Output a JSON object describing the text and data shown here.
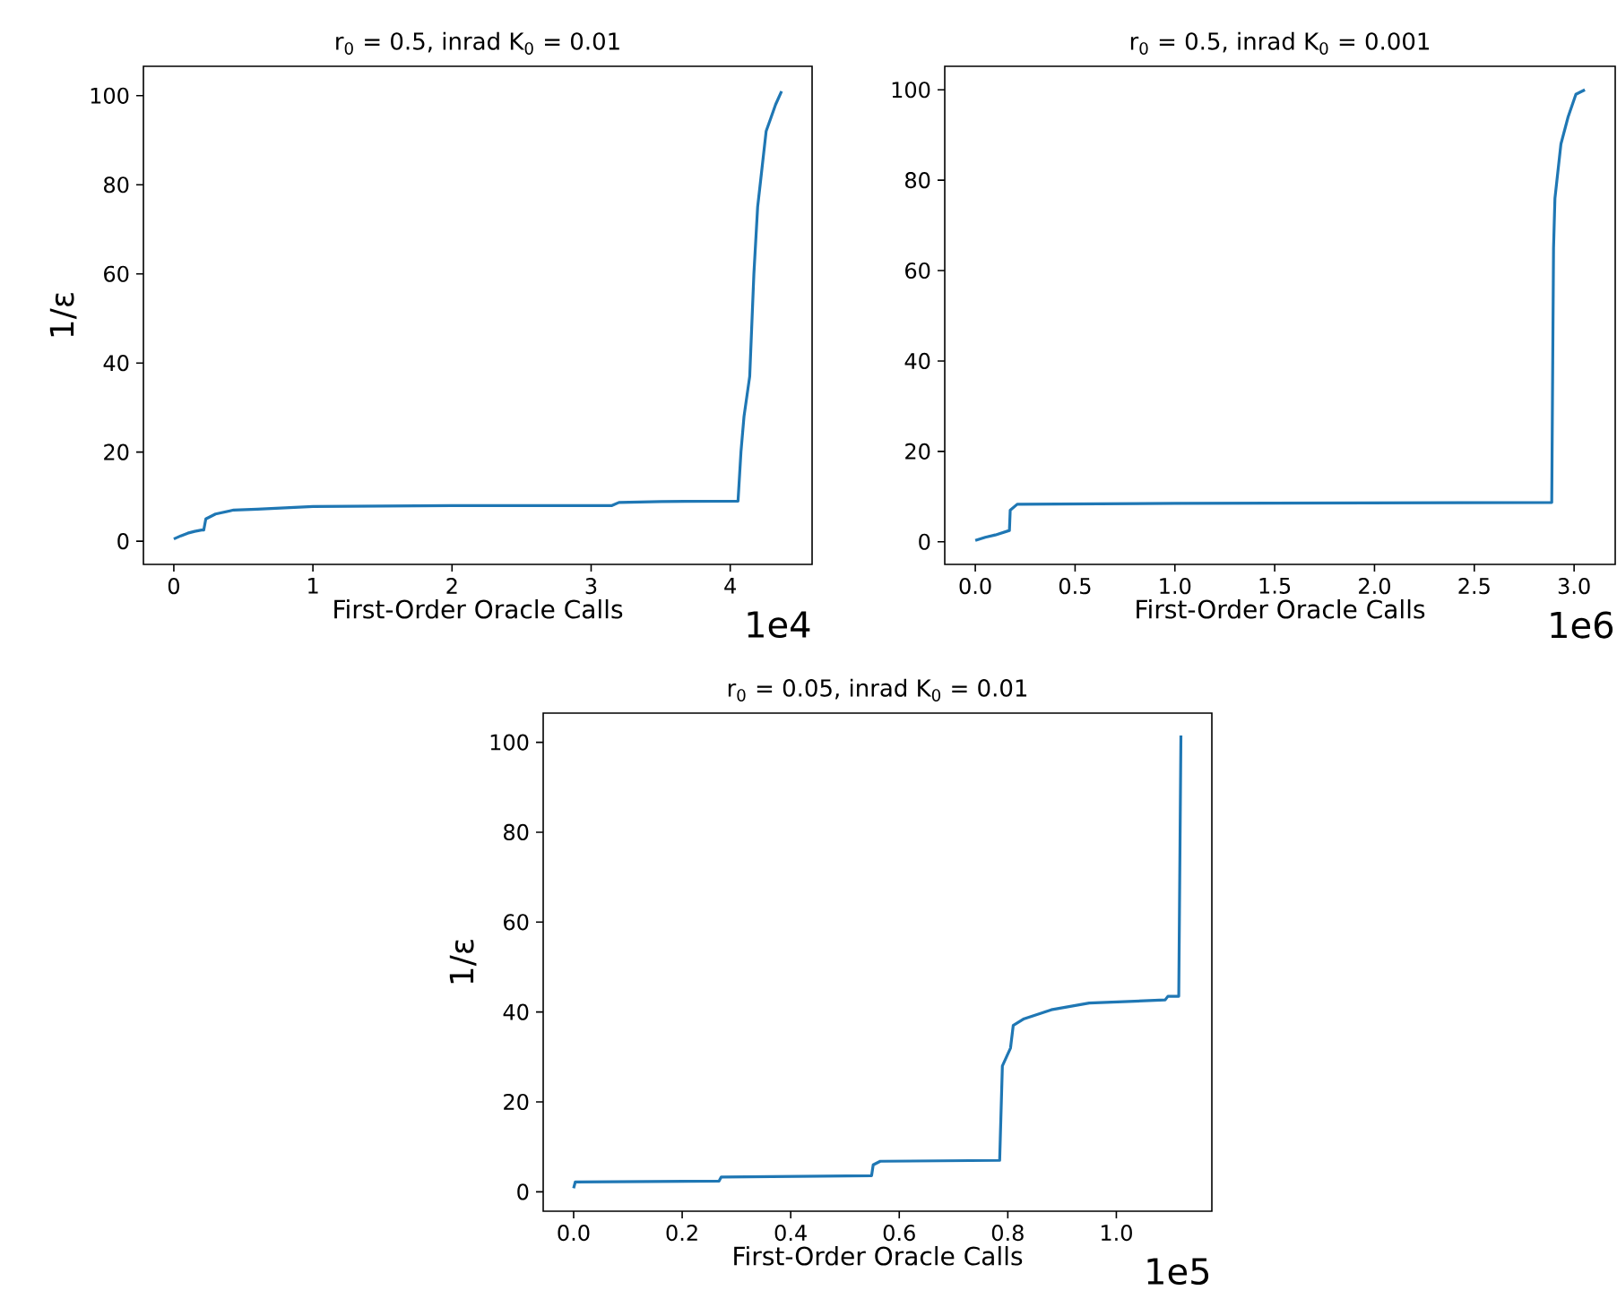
{
  "chart_data": [
    {
      "type": "line",
      "title": "r$_{0}$ = 0.5, inrad K$_{0}$ = 0.01",
      "xlabel": "First-Order Oracle Calls",
      "ylabel": "1/ε",
      "annotations": [
        "1e4"
      ],
      "series": [
        {
          "color": "#1f77b4",
          "x": [
            0,
            0.05,
            0.1,
            0.15,
            0.2,
            0.215,
            0.23,
            0.3,
            0.43,
            0.6,
            1.0,
            2.0,
            3.15,
            3.2,
            3.5,
            4.056,
            4.077,
            4.099,
            4.14,
            4.17,
            4.197,
            4.215,
            4.258,
            4.292,
            4.326,
            4.369
          ],
          "values": [
            0.5,
            1.2,
            1.8,
            2.2,
            2.5,
            2.5,
            5,
            6.1,
            7,
            7.2,
            7.8,
            8,
            8,
            8.7,
            8.9,
            9,
            20,
            28,
            37,
            60,
            75,
            80,
            92,
            95,
            98,
            101
          ]
        }
      ],
      "xlim": [
        -0.2185,
        4.5885
      ],
      "ylim": [
        -5.2,
        106.6
      ],
      "xticks": [
        0,
        1,
        2,
        3,
        4
      ],
      "yticks": [
        0,
        20,
        40,
        60,
        80,
        100
      ]
    },
    {
      "type": "line",
      "title": "r$_{0}$ = 0.5, inrad K$_{0}$ = 0.001",
      "xlabel": "First-Order Oracle Calls",
      "annotations": [
        "1e6"
      ],
      "series": [
        {
          "color": "#1f77b4",
          "x": [
            0,
            0.05,
            0.1,
            0.171,
            0.175,
            0.21,
            1.0,
            2.888,
            2.893,
            2.897,
            2.904,
            2.934,
            2.97,
            3.009,
            3.054
          ],
          "values": [
            0.3,
            1,
            1.5,
            2.5,
            7,
            8.3,
            8.5,
            8.7,
            40,
            65,
            76,
            88,
            94,
            99,
            100
          ]
        }
      ],
      "xlim": [
        -0.153,
        3.206
      ],
      "ylim": [
        -5,
        105.2
      ],
      "xticks": [
        {
          "value": 0,
          "label": "0.0"
        },
        {
          "value": 0.5,
          "label": "0.5"
        },
        {
          "value": 1,
          "label": "1.0"
        },
        {
          "value": 1.5,
          "label": "1.5"
        },
        {
          "value": 2,
          "label": "2.0"
        },
        {
          "value": 2.5,
          "label": "2.5"
        },
        {
          "value": 3,
          "label": "3.0"
        }
      ],
      "yticks": [
        0,
        20,
        40,
        60,
        80,
        100
      ]
    },
    {
      "type": "line",
      "title": "r$_{0}$ = 0.05, inrad K$_{0}$ = 0.01",
      "xlabel": "First-Order Oracle Calls",
      "ylabel": "1/ε",
      "annotations": [
        "1e5"
      ],
      "series": [
        {
          "color": "#1f77b4",
          "x": [
            0,
            0.003,
            0.268,
            0.272,
            0.549,
            0.552,
            0.565,
            0.785,
            0.79,
            0.805,
            0.81,
            0.83,
            0.88,
            0.95,
            1.09,
            1.095,
            1.115,
            1.119
          ],
          "values": [
            0.8,
            2.2,
            2.4,
            3.3,
            3.6,
            6,
            6.8,
            7,
            28,
            32,
            37,
            38.5,
            40.5,
            42,
            42.7,
            43.5,
            43.5,
            101.5
          ]
        }
      ],
      "xlim": [
        -0.0561,
        1.176
      ],
      "ylim": [
        -4.3,
        106.5
      ],
      "xticks": [
        {
          "value": 0,
          "label": "0.0"
        },
        {
          "value": 0.2,
          "label": "0.2"
        },
        {
          "value": 0.4,
          "label": "0.4"
        },
        {
          "value": 0.6,
          "label": "0.6"
        },
        {
          "value": 0.8,
          "label": "0.8"
        },
        {
          "value": 1,
          "label": "1.0"
        }
      ],
      "yticks": [
        0,
        20,
        40,
        60,
        80,
        100
      ]
    }
  ]
}
